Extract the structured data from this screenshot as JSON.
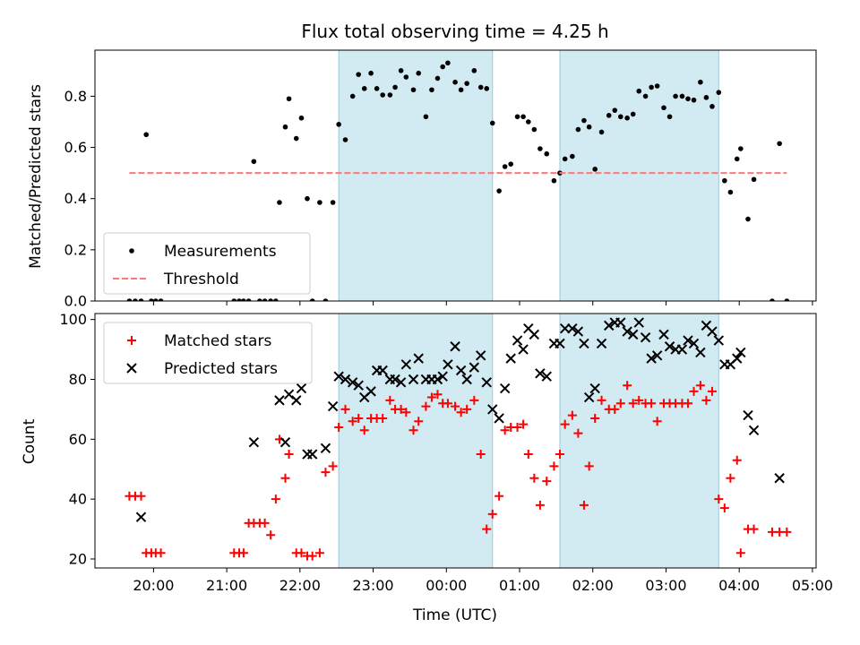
{
  "chart_data": {
    "title": "Flux total observing time = 4.25 h",
    "xlabel": "Time (UTC)",
    "x_unit": "hours",
    "x_ticks": [
      {
        "v": 20,
        "label": "20:00"
      },
      {
        "v": 21,
        "label": "21:00"
      },
      {
        "v": 22,
        "label": "22:00"
      },
      {
        "v": 23,
        "label": "23:00"
      },
      {
        "v": 24,
        "label": "00:00"
      },
      {
        "v": 25,
        "label": "01:00"
      },
      {
        "v": 26,
        "label": "02:00"
      },
      {
        "v": 27,
        "label": "03:00"
      },
      {
        "v": 28,
        "label": "04:00"
      },
      {
        "v": 29,
        "label": "05:00"
      }
    ],
    "xlim": [
      19.2,
      29.05
    ],
    "shaded_intervals": [
      [
        22.53,
        24.63
      ],
      [
        25.55,
        27.72
      ]
    ],
    "shade_color": "#add8e6",
    "top": {
      "type": "scatter",
      "ylabel": "Matched/Predicted stars",
      "ylim": [
        0,
        0.98
      ],
      "y_ticks": [
        0.0,
        0.2,
        0.4,
        0.6,
        0.8
      ],
      "legend_position": "lower-left",
      "series": [
        {
          "name": "Measurements",
          "color": "#000000",
          "marker": "dot",
          "x": [
            19.67,
            19.75,
            19.83,
            19.9,
            19.97,
            20.03,
            20.1,
            21.1,
            21.17,
            21.23,
            21.3,
            21.37,
            21.45,
            21.52,
            21.6,
            21.67,
            21.72,
            21.8,
            21.85,
            21.95,
            22.02,
            22.1,
            22.17,
            22.27,
            22.35,
            22.45,
            22.53,
            22.62,
            22.72,
            22.8,
            22.88,
            22.97,
            23.05,
            23.13,
            23.23,
            23.3,
            23.38,
            23.45,
            23.55,
            23.62,
            23.72,
            23.8,
            23.88,
            23.95,
            24.02,
            24.12,
            24.2,
            24.28,
            24.38,
            24.47,
            24.55,
            24.63,
            24.72,
            24.8,
            24.88,
            24.97,
            25.05,
            25.12,
            25.2,
            25.28,
            25.37,
            25.47,
            25.55,
            25.62,
            25.72,
            25.8,
            25.88,
            25.95,
            26.03,
            26.12,
            26.22,
            26.3,
            26.38,
            26.47,
            26.55,
            26.63,
            26.72,
            26.8,
            26.88,
            26.97,
            27.05,
            27.13,
            27.22,
            27.3,
            27.38,
            27.47,
            27.55,
            27.63,
            27.72,
            27.8,
            27.88,
            27.97,
            28.02,
            28.12,
            28.2,
            28.45,
            28.55,
            28.65
          ],
          "y": [
            0,
            0,
            0,
            0.65,
            0,
            0,
            0,
            0,
            0,
            0,
            0,
            0.545,
            0,
            0,
            0,
            0,
            0.385,
            0.68,
            0.79,
            0.635,
            0.715,
            0.4,
            0,
            0.385,
            0,
            0.385,
            0.69,
            0.63,
            0.8,
            0.885,
            0.83,
            0.89,
            0.83,
            0.805,
            0.805,
            0.835,
            0.9,
            0.875,
            0.825,
            0.89,
            0.72,
            0.825,
            0.87,
            0.915,
            0.93,
            0.855,
            0.825,
            0.85,
            0.9,
            0.835,
            0.83,
            0.695,
            0.43,
            0.525,
            0.535,
            0.72,
            0.72,
            0.7,
            0.67,
            0.595,
            0.575,
            0.47,
            0.5,
            0.555,
            0.565,
            0.67,
            0.705,
            0.68,
            0.515,
            0.66,
            0.725,
            0.745,
            0.72,
            0.715,
            0.73,
            0.82,
            0.8,
            0.835,
            0.84,
            0.755,
            0.72,
            0.8,
            0.8,
            0.79,
            0.785,
            0.855,
            0.795,
            0.76,
            0.815,
            0.47,
            0.425,
            0.555,
            0.595,
            0.32,
            0.475,
            0,
            0.615,
            0
          ]
        },
        {
          "name": "Threshold",
          "color": "#ff7777",
          "style": "dashed",
          "x": [
            19.67,
            28.65
          ],
          "y": [
            0.5,
            0.5
          ]
        }
      ]
    },
    "bottom": {
      "type": "scatter",
      "ylabel": "Count",
      "ylim": [
        17,
        102
      ],
      "y_ticks": [
        20,
        40,
        60,
        80,
        100
      ],
      "legend_position": "upper-left",
      "series": [
        {
          "name": "Matched stars",
          "color": "#ff0000",
          "marker": "plus",
          "x": [
            19.67,
            19.75,
            19.83,
            19.9,
            19.97,
            20.03,
            20.1,
            21.1,
            21.17,
            21.23,
            21.3,
            21.37,
            21.45,
            21.52,
            21.6,
            21.67,
            21.72,
            21.8,
            21.85,
            21.95,
            22.02,
            22.1,
            22.17,
            22.27,
            22.35,
            22.45,
            22.53,
            22.62,
            22.72,
            22.8,
            22.88,
            22.97,
            23.05,
            23.13,
            23.23,
            23.3,
            23.38,
            23.45,
            23.55,
            23.62,
            23.72,
            23.8,
            23.88,
            23.95,
            24.02,
            24.12,
            24.2,
            24.28,
            24.38,
            24.47,
            24.55,
            24.63,
            24.72,
            24.8,
            24.88,
            24.97,
            25.05,
            25.12,
            25.2,
            25.28,
            25.37,
            25.47,
            25.55,
            25.62,
            25.72,
            25.8,
            25.88,
            25.95,
            26.03,
            26.12,
            26.22,
            26.3,
            26.38,
            26.47,
            26.55,
            26.63,
            26.72,
            26.8,
            26.88,
            26.97,
            27.05,
            27.13,
            27.22,
            27.3,
            27.38,
            27.47,
            27.55,
            27.63,
            27.72,
            27.8,
            27.88,
            27.97,
            28.02,
            28.12,
            28.2,
            28.45,
            28.55,
            28.65
          ],
          "y": [
            41,
            41,
            41,
            22,
            22,
            22,
            22,
            22,
            22,
            22,
            32,
            32,
            32,
            32,
            28,
            40,
            60,
            47,
            55,
            22,
            22,
            21,
            21,
            22,
            49,
            51,
            64,
            70,
            66,
            67,
            63,
            67,
            67,
            67,
            73,
            70,
            70,
            69,
            63,
            66,
            71,
            74,
            75,
            72,
            72,
            71,
            69,
            70,
            73,
            55,
            30,
            35,
            41,
            63,
            64,
            64,
            65,
            55,
            47,
            38,
            46,
            51,
            55,
            65,
            68,
            62,
            38,
            51,
            67,
            73,
            70,
            70,
            72,
            78,
            72,
            73,
            72,
            72,
            66,
            72,
            72,
            72,
            72,
            72,
            76,
            78,
            73,
            76,
            40,
            37,
            47,
            53,
            22,
            30,
            30,
            29,
            29,
            29
          ],
          "x_fix": true
        },
        {
          "name": "Predicted stars",
          "color": "#000000",
          "marker": "x",
          "x": [
            19.83,
            21.37,
            21.72,
            21.8,
            21.85,
            21.95,
            22.02,
            22.1,
            22.17,
            22.35,
            22.45,
            22.53,
            22.62,
            22.72,
            22.8,
            22.88,
            22.97,
            23.05,
            23.13,
            23.23,
            23.3,
            23.38,
            23.45,
            23.55,
            23.62,
            23.72,
            23.8,
            23.88,
            23.95,
            24.02,
            24.12,
            24.2,
            24.28,
            24.38,
            24.47,
            24.55,
            24.63,
            24.72,
            24.8,
            24.88,
            24.97,
            25.05,
            25.12,
            25.2,
            25.28,
            25.37,
            25.47,
            25.55,
            25.62,
            25.72,
            25.8,
            25.88,
            25.95,
            26.03,
            26.12,
            26.22,
            26.3,
            26.38,
            26.47,
            26.55,
            26.63,
            26.72,
            26.8,
            26.88,
            26.97,
            27.05,
            27.13,
            27.22,
            27.3,
            27.38,
            27.47,
            27.55,
            27.63,
            27.72,
            27.8,
            27.88,
            27.97,
            28.02,
            28.12,
            28.2,
            28.55
          ],
          "y": [
            34,
            59,
            73,
            59,
            75,
            73,
            77,
            55,
            55,
            57,
            71,
            81,
            80,
            79,
            78,
            74,
            76,
            83,
            83,
            80,
            80,
            79,
            85,
            80,
            87,
            80,
            80,
            80,
            81,
            85,
            91,
            83,
            80,
            84,
            88,
            79,
            70,
            67,
            77,
            87,
            93,
            90,
            97,
            95,
            82,
            81,
            92,
            92,
            97,
            97,
            96,
            92,
            74,
            77,
            92,
            98,
            99,
            99,
            96,
            95,
            99,
            94,
            87,
            88,
            95,
            91,
            90,
            90,
            93,
            92,
            89,
            98,
            96,
            93,
            85,
            85,
            87,
            89,
            68,
            63,
            47
          ]
        }
      ]
    }
  }
}
